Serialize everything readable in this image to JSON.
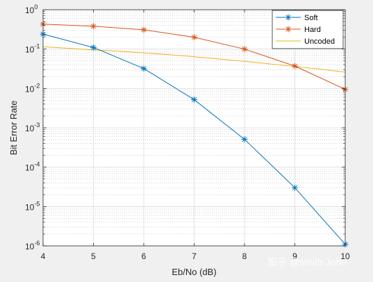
{
  "chart_data": {
    "type": "line",
    "title": "",
    "xlabel": "Eb/No (dB)",
    "ylabel": "Bit Error Rate",
    "xlim": [
      4,
      10
    ],
    "ylim": [
      1e-06,
      1
    ],
    "yscale": "log",
    "grid": true,
    "minor_grid": true,
    "legend_position": "top-right",
    "x": [
      4,
      5,
      6,
      7,
      8,
      9,
      10
    ],
    "x_ticks": [
      "4",
      "5",
      "6",
      "7",
      "8",
      "9",
      "10"
    ],
    "y_ticks": [
      {
        "base": "10",
        "exp": "0"
      },
      {
        "base": "10",
        "exp": "-1"
      },
      {
        "base": "10",
        "exp": "-2"
      },
      {
        "base": "10",
        "exp": "-3"
      },
      {
        "base": "10",
        "exp": "-4"
      },
      {
        "base": "10",
        "exp": "-5"
      },
      {
        "base": "10",
        "exp": "-6"
      }
    ],
    "series": [
      {
        "name": "Soft",
        "color": "#0072bd",
        "marker": "asterisk",
        "x": [
          4,
          5,
          6,
          7,
          8,
          9,
          10
        ],
        "values": [
          0.24,
          0.11,
          0.032,
          0.0052,
          0.00051,
          3e-05,
          1.1e-06
        ]
      },
      {
        "name": "Hard",
        "color": "#d95319",
        "marker": "asterisk",
        "x": [
          4,
          5,
          6,
          7,
          8,
          9,
          10
        ],
        "values": [
          0.43,
          0.38,
          0.31,
          0.2,
          0.1,
          0.037,
          0.0095
        ]
      },
      {
        "name": "Uncoded",
        "color": "#edb120",
        "marker": "none",
        "x": [
          4,
          4.5,
          5,
          5.5,
          6,
          6.5,
          7,
          7.5,
          8,
          8.5,
          9,
          9.5,
          10
        ],
        "values": [
          0.115,
          0.105,
          0.095,
          0.088,
          0.08,
          0.072,
          0.064,
          0.056,
          0.049,
          0.042,
          0.036,
          0.031,
          0.026
        ]
      }
    ]
  },
  "watermark": "知乎 @smith John"
}
